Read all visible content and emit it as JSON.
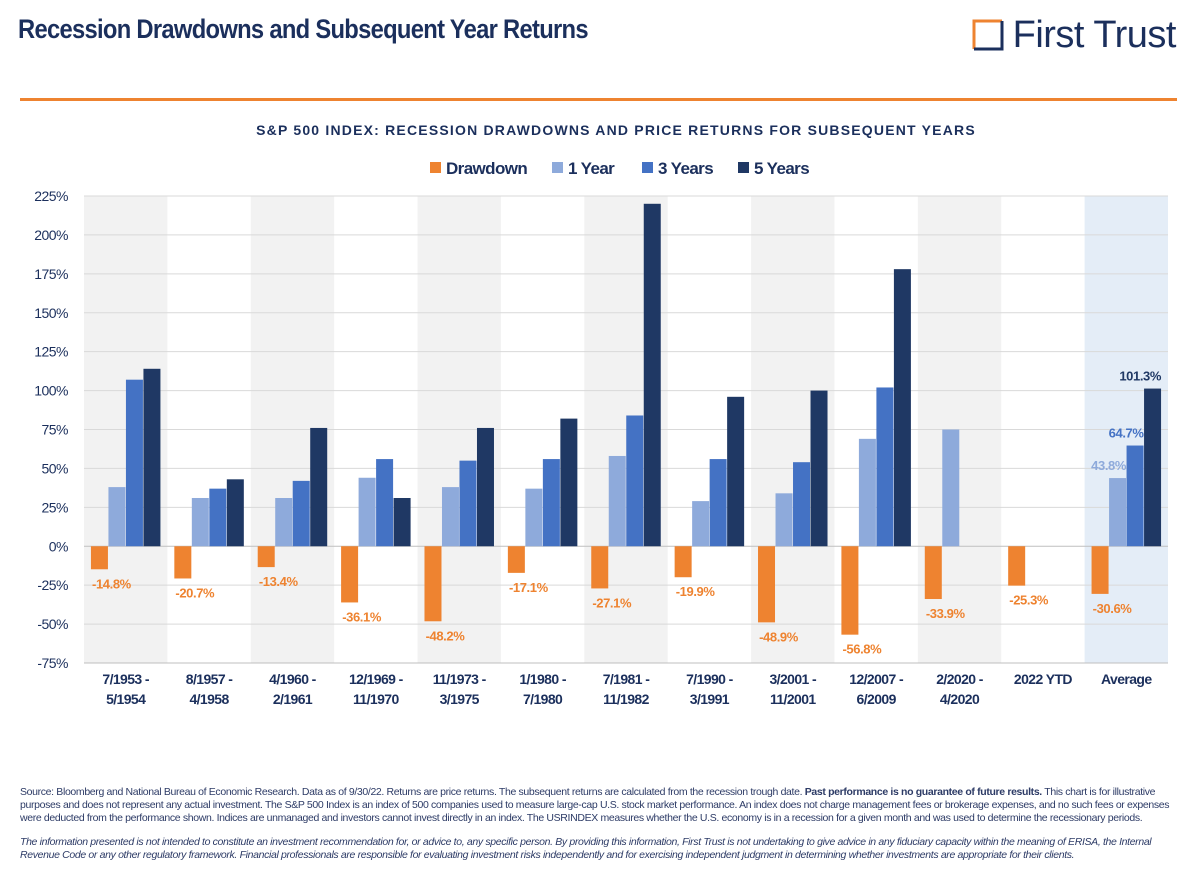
{
  "header": {
    "title": "Recession Drawdowns and Subsequent Year Returns",
    "brand": "First Trust"
  },
  "colors": {
    "drawdown": "#ee8330",
    "one_year": "#8eaadb",
    "three_years": "#4472c4",
    "five_years": "#1f3864",
    "shade": "#f2f2f2",
    "average_shade": "#e4edf7",
    "brand_orange": "#ee8330",
    "brand_navy": "#1b2f5c"
  },
  "chart_data": {
    "type": "bar",
    "title": "S&P 500 INDEX: RECESSION DRAWDOWNS AND PRICE RETURNS FOR SUBSEQUENT YEARS",
    "xlabel": "",
    "ylabel": "",
    "ylim": [
      -75,
      225
    ],
    "yticks": [
      -75,
      -50,
      -25,
      0,
      25,
      50,
      75,
      100,
      125,
      150,
      175,
      200,
      225
    ],
    "ytick_labels": [
      "-75%",
      "-50%",
      "-25%",
      "0%",
      "25%",
      "50%",
      "75%",
      "100%",
      "125%",
      "150%",
      "175%",
      "200%",
      "225%"
    ],
    "grid": true,
    "legend_position": "top-center",
    "categories": [
      [
        "7/1953 -",
        "5/1954"
      ],
      [
        "8/1957 -",
        "4/1958"
      ],
      [
        "4/1960 -",
        "2/1961"
      ],
      [
        "12/1969 -",
        "11/1970"
      ],
      [
        "11/1973 -",
        "3/1975"
      ],
      [
        "1/1980 -",
        "7/1980"
      ],
      [
        "7/1981 -",
        "11/1982"
      ],
      [
        "7/1990 -",
        "3/1991"
      ],
      [
        "3/2001 -",
        "11/2001"
      ],
      [
        "12/2007 -",
        "6/2009"
      ],
      [
        "2/2020 -",
        "4/2020"
      ],
      [
        "2022 YTD"
      ],
      [
        "Average"
      ]
    ],
    "series": [
      {
        "name": "Drawdown",
        "values": [
          -14.8,
          -20.7,
          -13.4,
          -36.1,
          -48.2,
          -17.1,
          -27.1,
          -19.9,
          -48.9,
          -56.8,
          -33.9,
          -25.3,
          -30.6
        ],
        "labels": [
          "-14.8%",
          "-20.7%",
          "-13.4%",
          "-36.1%",
          "-48.2%",
          "-17.1%",
          "-27.1%",
          "-19.9%",
          "-48.9%",
          "-56.8%",
          "-33.9%",
          "-25.3%",
          "-30.6%"
        ]
      },
      {
        "name": "1 Year",
        "values": [
          38,
          31,
          31,
          44,
          38,
          37,
          58,
          29,
          34,
          69,
          75,
          null,
          43.8
        ],
        "labels": [
          null,
          null,
          null,
          null,
          null,
          null,
          null,
          null,
          null,
          null,
          null,
          null,
          "43.8%"
        ]
      },
      {
        "name": "3 Years",
        "values": [
          107,
          37,
          42,
          56,
          55,
          56,
          84,
          56,
          54,
          102,
          null,
          null,
          64.7
        ],
        "labels": [
          null,
          null,
          null,
          null,
          null,
          null,
          null,
          null,
          null,
          null,
          null,
          null,
          "64.7%"
        ]
      },
      {
        "name": "5 Years",
        "values": [
          114,
          43,
          76,
          31,
          76,
          82,
          220,
          96,
          100,
          178,
          null,
          null,
          101.3
        ],
        "labels": [
          null,
          null,
          null,
          null,
          null,
          null,
          null,
          null,
          null,
          null,
          null,
          null,
          "101.3%"
        ]
      }
    ]
  },
  "footnote": {
    "part1": "Source: Bloomberg and National Bureau of Economic Research. Data as of 9/30/22. Returns are price returns. The subsequent returns are calculated from the recession trough date. ",
    "bold": "Past performance is no guarantee of future results.",
    "part2": " This chart is for illustrative purposes and does not represent any actual investment. The S&P 500 Index is an index of 500 companies used to measure large-cap U.S. stock market performance. An index does not charge management fees or brokerage expenses, and no such fees or expenses were deducted from the performance shown. Indices are unmanaged and investors cannot invest directly in an index. The USRINDEX measures whether the U.S. economy is in a recession for a given month and was used to determine the recessionary periods.",
    "disclaimer": "The information presented is not intended to constitute an investment recommendation for, or advice to, any specific person. By providing this information, First Trust is not undertaking to give advice in any fiduciary capacity within the meaning of ERISA, the Internal Revenue Code or any other regulatory framework. Financial professionals are responsible for evaluating investment risks independently and for exercising independent judgment in determining whether investments are appropriate for their clients."
  }
}
